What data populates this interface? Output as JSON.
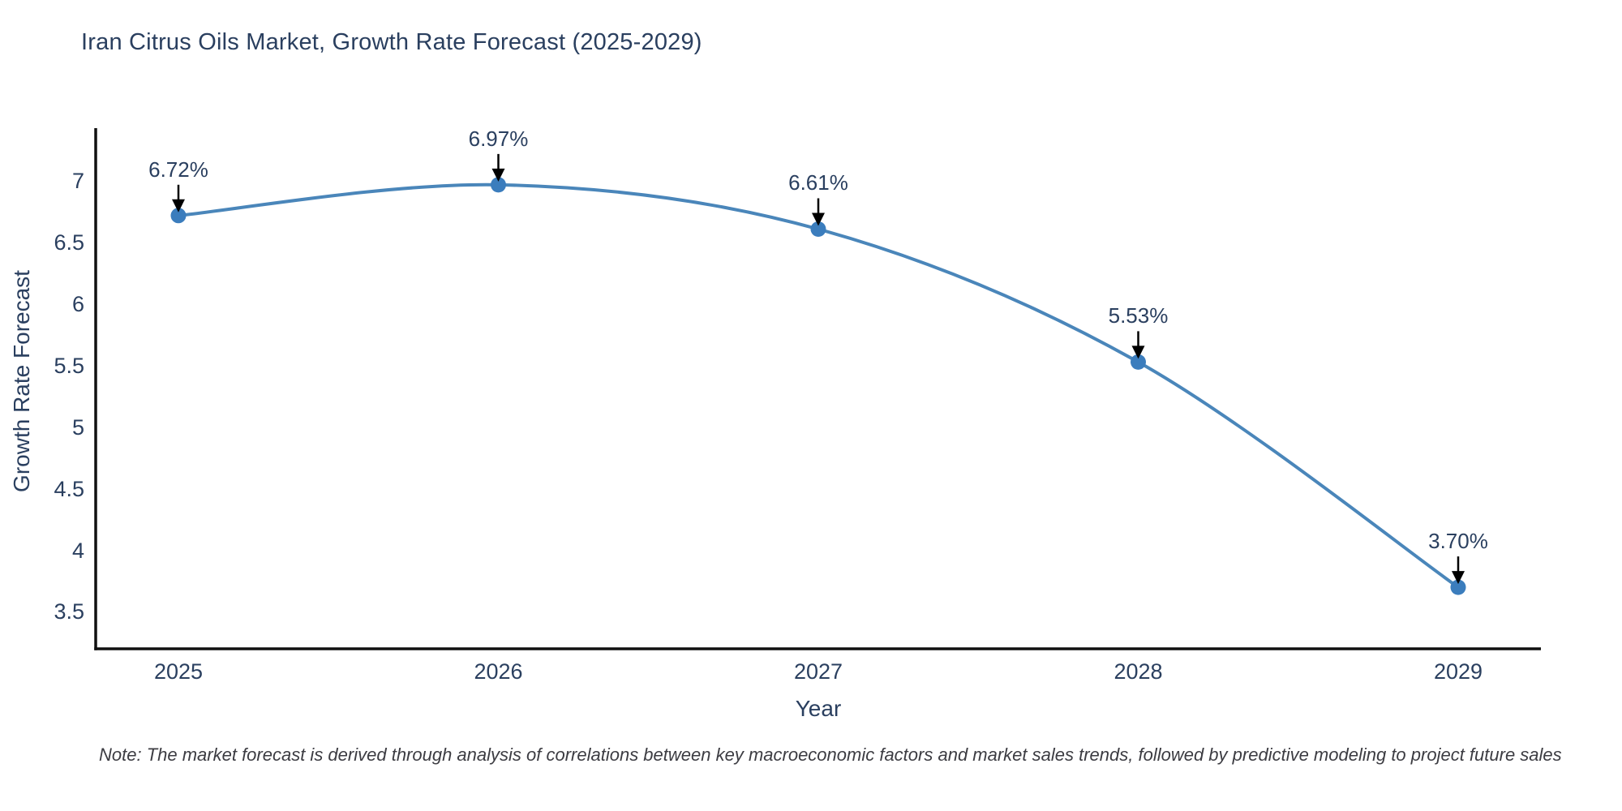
{
  "page": {
    "title": "Iran Citrus Oils Market, Growth Rate Forecast (2025-2029)",
    "note": "Note: The market forecast is derived through analysis of correlations between key macroeconomic factors and market sales trends, followed by predictive modeling to project future sales"
  },
  "chart_data": {
    "type": "line",
    "title": "Iran Citrus Oils Market, Growth Rate Forecast (2025-2029)",
    "xlabel": "Year",
    "ylabel": "Growth Rate Forecast",
    "categories": [
      "2025",
      "2026",
      "2027",
      "2028",
      "2029"
    ],
    "values": [
      6.72,
      6.97,
      6.61,
      5.53,
      3.7
    ],
    "point_labels": [
      "6.72%",
      "6.97%",
      "6.61%",
      "5.53%",
      "3.70%"
    ],
    "y_ticks": [
      "3.5",
      "4",
      "4.5",
      "5",
      "5.5",
      "6",
      "6.5",
      "7"
    ],
    "y_tick_values": [
      3.5,
      4,
      4.5,
      5,
      5.5,
      6,
      6.5,
      7
    ],
    "ylim": [
      3.2,
      7.43
    ],
    "grid": false,
    "legend_position": "none",
    "annotation_style": "value labels with black arrows pointing to markers",
    "colors": {
      "line": "#4a86ba",
      "marker": "#3b7dbd",
      "arrow": "#000000",
      "axis": "#111111",
      "text": "#2a3f5f",
      "note_text": "#3c3c42",
      "background": "#ffffff"
    }
  }
}
